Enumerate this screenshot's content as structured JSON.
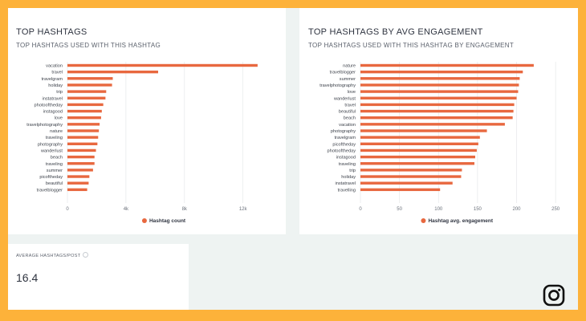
{
  "accent_color": "#e8683f",
  "cards": {
    "hashtag_count": {
      "title": "TOP HASHTAGS",
      "subtitle": "TOP HASHTAGS USED WITH THIS HASHTAG"
    },
    "avg_engagement": {
      "title": "TOP HASHTAGS BY AVG ENGAGEMENT",
      "subtitle": "TOP HASHTAGS USED WITH THIS HASHTAG BY ENGAGEMENT"
    },
    "average_hashtags": {
      "label": "AVERAGE HASHTAGS/POST",
      "value": "16.4",
      "icon": "info-icon"
    }
  },
  "brand_icon": "instagram-icon",
  "chart_data": [
    {
      "type": "bar",
      "orientation": "horizontal",
      "categories": [
        "vacation",
        "travel",
        "travelgram",
        "holiday",
        "trip",
        "instatravel",
        "photooftheday",
        "instagood",
        "love",
        "travelphotography",
        "nature",
        "traveling",
        "photography",
        "wanderlust",
        "beach",
        "traveling",
        "summer",
        "picoftheday",
        "beautiful",
        "travelblogger"
      ],
      "series": [
        {
          "name": "Hashtag count",
          "values": [
            13000,
            6200,
            3100,
            3050,
            2650,
            2600,
            2450,
            2350,
            2300,
            2200,
            2150,
            2100,
            2050,
            1950,
            1850,
            1850,
            1750,
            1500,
            1450,
            1350
          ]
        }
      ],
      "xlim": [
        0,
        13500
      ],
      "xticks": [
        0,
        4000,
        8000,
        12000
      ],
      "xtick_labels": [
        "0",
        "4k",
        "8k",
        "12k"
      ],
      "legend": "bottom",
      "grid": true
    },
    {
      "type": "bar",
      "orientation": "horizontal",
      "categories": [
        "nature",
        "travelblogger",
        "summer",
        "travelphotography",
        "love",
        "wanderlust",
        "travel",
        "beautiful",
        "beach",
        "vacation",
        "photography",
        "travelgram",
        "picoftheday",
        "photooftheday",
        "instagood",
        "traveling",
        "trip",
        "holiday",
        "instatravel",
        "travelling"
      ],
      "series": [
        {
          "name": "Hashtag avg. engagement",
          "values": [
            222,
            208,
            204,
            203,
            202,
            200,
            197,
            196,
            195,
            185,
            162,
            153,
            151,
            149,
            147,
            146,
            130,
            129,
            118,
            102
          ]
        }
      ],
      "xlim": [
        0,
        255
      ],
      "xticks": [
        0,
        50,
        100,
        150,
        200,
        250
      ],
      "xtick_labels": [
        "0",
        "50",
        "100",
        "150",
        "200",
        "250"
      ],
      "legend": "bottom",
      "grid": true
    }
  ]
}
